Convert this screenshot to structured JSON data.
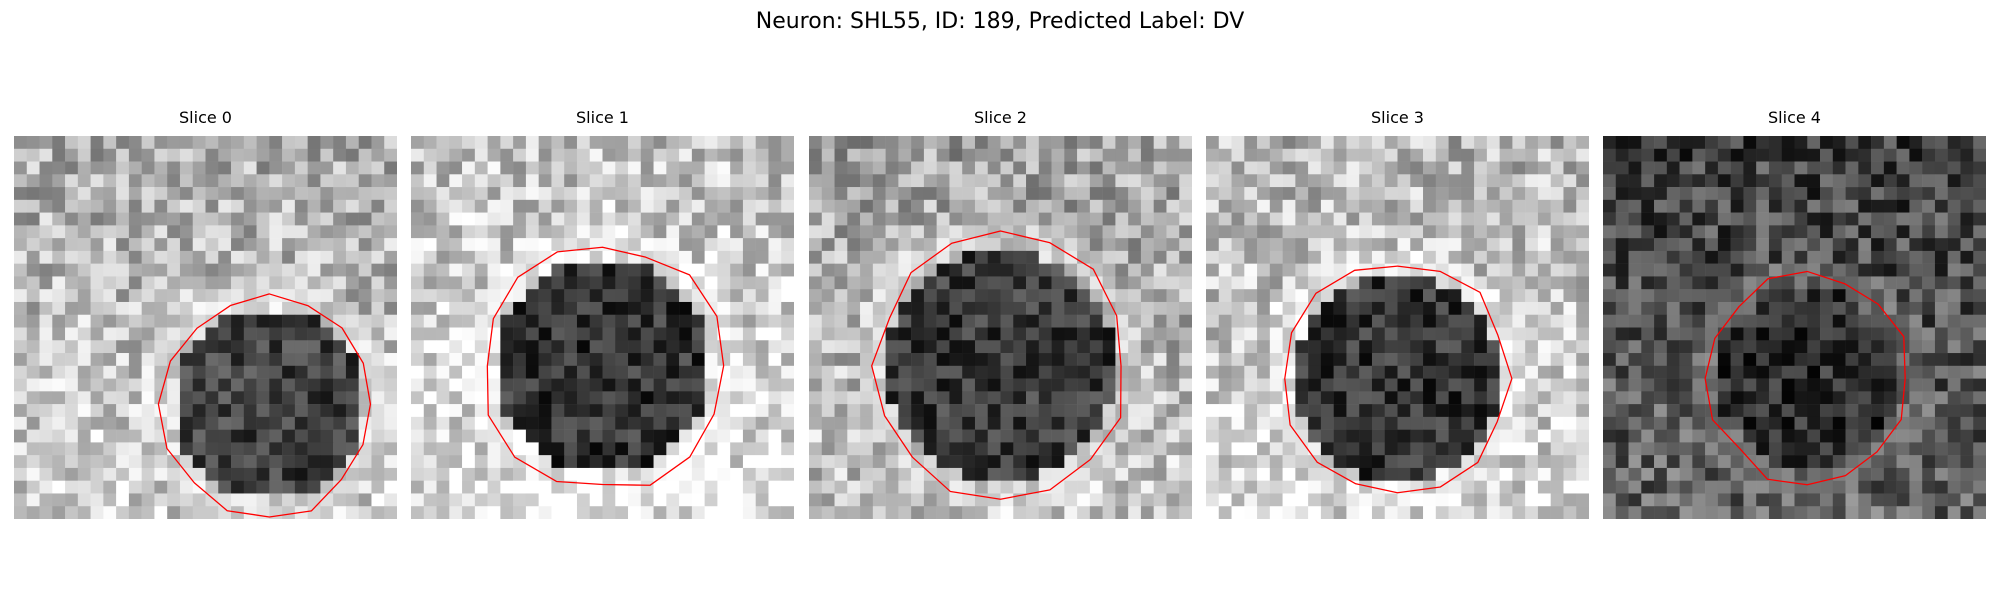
{
  "figure": {
    "title": "Neuron: SHL55, ID: 189, Predicted Label: DV"
  },
  "colors": {
    "contour": "#ff0000",
    "colormap": "grayscale"
  },
  "panels": [
    {
      "title": "Slice 0",
      "seed": 11,
      "background": 0.72,
      "cell_center": [
        5,
        6
      ],
      "cell_radius": 7.5,
      "cell_darkness": 0.25,
      "contour_bg_offset": [
        0,
        0
      ]
    },
    {
      "title": "Slice 1",
      "seed": 23,
      "background": 0.8,
      "cell_center": [
        0,
        3
      ],
      "cell_radius": 8.5,
      "cell_darkness": 0.2,
      "contour_bg_offset": [
        0,
        0
      ]
    },
    {
      "title": "Slice 2",
      "seed": 37,
      "background": 0.68,
      "cell_center": [
        0,
        3
      ],
      "cell_radius": 9.0,
      "cell_darkness": 0.22,
      "contour_bg_offset": [
        0,
        0
      ]
    },
    {
      "title": "Slice 3",
      "seed": 41,
      "background": 0.76,
      "cell_center": [
        0,
        4
      ],
      "cell_radius": 8.0,
      "cell_darkness": 0.2,
      "contour_bg_offset": [
        0,
        0
      ]
    },
    {
      "title": "Slice 4",
      "seed": 53,
      "background": 0.3,
      "cell_center": [
        1,
        4
      ],
      "cell_radius": 7.0,
      "cell_darkness": 0.18,
      "contour_bg_offset": [
        0,
        0
      ]
    }
  ]
}
